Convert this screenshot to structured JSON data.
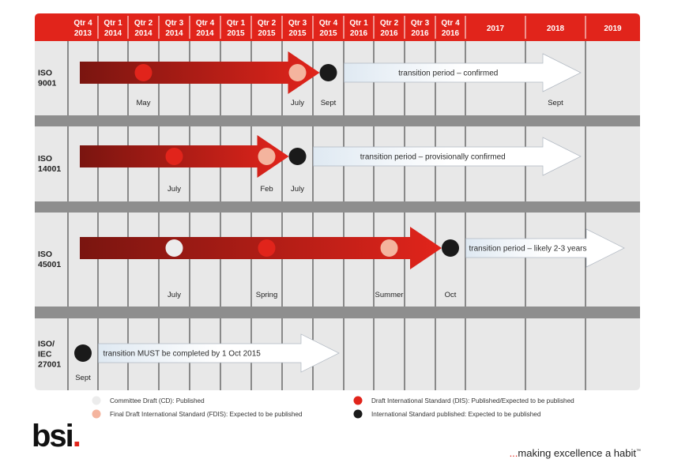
{
  "header": {
    "columns": [
      [
        "Qtr 4",
        "2013"
      ],
      [
        "Qtr 1",
        "2014"
      ],
      [
        "Qtr 2",
        "2014"
      ],
      [
        "Qtr 3",
        "2014"
      ],
      [
        "Qtr 4",
        "2014"
      ],
      [
        "Qtr 1",
        "2015"
      ],
      [
        "Qtr 2",
        "2015"
      ],
      [
        "Qtr 3",
        "2015"
      ],
      [
        "Qtr 4",
        "2015"
      ],
      [
        "Qtr 1",
        "2016"
      ],
      [
        "Qtr 2",
        "2016"
      ],
      [
        "Qtr 3",
        "2016"
      ],
      [
        "Qtr 4",
        "2016"
      ],
      [
        "2017"
      ],
      [
        "2018"
      ],
      [
        "2019"
      ]
    ]
  },
  "rows": [
    {
      "label": [
        "ISO",
        "9001"
      ],
      "markers": [
        {
          "col": 2.5,
          "type": "dis",
          "label": "May"
        },
        {
          "col": 7.5,
          "type": "fdis",
          "label": "July"
        },
        {
          "col": 8.5,
          "type": "is",
          "label": "Sept"
        }
      ],
      "transition": {
        "text": "transition period – confirmed",
        "from": 9.0,
        "to": 15.0
      },
      "transition_end_label": {
        "col": 14.5,
        "text": "Sept"
      }
    },
    {
      "label": [
        "ISO",
        "14001"
      ],
      "markers": [
        {
          "col": 3.5,
          "type": "dis",
          "label": "July"
        },
        {
          "col": 6.5,
          "type": "fdis",
          "label": "Feb"
        },
        {
          "col": 7.5,
          "type": "is",
          "label": "July"
        }
      ],
      "transition": {
        "text": "transition period – provisionally confirmed",
        "from": 8.0,
        "to": 15.0
      }
    },
    {
      "label": [
        "ISO",
        "45001"
      ],
      "markers": [
        {
          "col": 3.5,
          "type": "cd",
          "label": "July"
        },
        {
          "col": 6.5,
          "type": "dis",
          "label": "Spring"
        },
        {
          "col": 10.5,
          "type": "fdis",
          "label": "Summer"
        },
        {
          "col": 12.5,
          "type": "is",
          "label": "Oct"
        }
      ],
      "transition": {
        "text": "transition period – likely 2-3 years",
        "from": 13.0,
        "to": 16.0
      }
    },
    {
      "label": [
        "ISO/",
        "IEC",
        "27001"
      ],
      "markers": [
        {
          "col": 0.5,
          "type": "is",
          "label": "Sept"
        }
      ],
      "transition": {
        "text": "transition MUST be completed by 1 Oct 2015",
        "from": 1.0,
        "to": 9.0
      }
    }
  ],
  "legend": [
    {
      "type": "cd",
      "text": "Committee Draft (CD): Published"
    },
    {
      "type": "dis",
      "text": "Draft International Standard (DIS): Published/Expected to be published"
    },
    {
      "type": "fdis",
      "text": "Final Draft International Standard (FDIS): Expected to be published"
    },
    {
      "type": "is",
      "text": "International Standard published: Expected to be published"
    }
  ],
  "colors": {
    "header": "#e1241b",
    "row_bg": "#e8e8e8",
    "separator": "#8e8e8e",
    "cd": "#ececec",
    "dis": "#e1241b",
    "fdis": "#f4b49e",
    "is": "#1a1a1a",
    "arrow_dark": "#7a1510",
    "arrow_light": "#e1241b"
  },
  "logo": {
    "text": "bsi",
    "dot": "."
  },
  "tagline": {
    "ellipsis": "...",
    "text": "making excellence a habit",
    "tm": "™"
  }
}
